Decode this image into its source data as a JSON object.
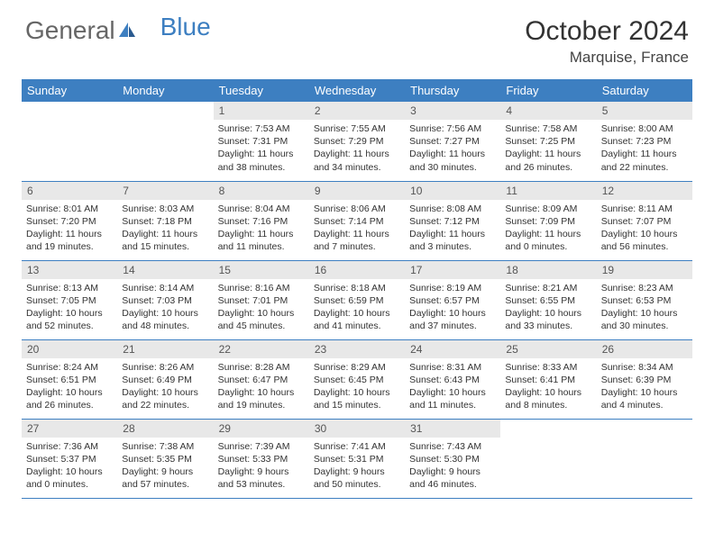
{
  "brand": {
    "part1": "General",
    "part2": "Blue"
  },
  "title": "October 2024",
  "location": "Marquise, France",
  "colors": {
    "accent": "#3d7fc1",
    "header_text": "#ffffff",
    "daynum_bg": "#e8e8e8",
    "text": "#333333",
    "bg": "#ffffff"
  },
  "weekdays": [
    "Sunday",
    "Monday",
    "Tuesday",
    "Wednesday",
    "Thursday",
    "Friday",
    "Saturday"
  ],
  "weeks": [
    [
      null,
      null,
      {
        "n": "1",
        "sr": "7:53 AM",
        "ss": "7:31 PM",
        "dl": "11 hours and 38 minutes."
      },
      {
        "n": "2",
        "sr": "7:55 AM",
        "ss": "7:29 PM",
        "dl": "11 hours and 34 minutes."
      },
      {
        "n": "3",
        "sr": "7:56 AM",
        "ss": "7:27 PM",
        "dl": "11 hours and 30 minutes."
      },
      {
        "n": "4",
        "sr": "7:58 AM",
        "ss": "7:25 PM",
        "dl": "11 hours and 26 minutes."
      },
      {
        "n": "5",
        "sr": "8:00 AM",
        "ss": "7:23 PM",
        "dl": "11 hours and 22 minutes."
      }
    ],
    [
      {
        "n": "6",
        "sr": "8:01 AM",
        "ss": "7:20 PM",
        "dl": "11 hours and 19 minutes."
      },
      {
        "n": "7",
        "sr": "8:03 AM",
        "ss": "7:18 PM",
        "dl": "11 hours and 15 minutes."
      },
      {
        "n": "8",
        "sr": "8:04 AM",
        "ss": "7:16 PM",
        "dl": "11 hours and 11 minutes."
      },
      {
        "n": "9",
        "sr": "8:06 AM",
        "ss": "7:14 PM",
        "dl": "11 hours and 7 minutes."
      },
      {
        "n": "10",
        "sr": "8:08 AM",
        "ss": "7:12 PM",
        "dl": "11 hours and 3 minutes."
      },
      {
        "n": "11",
        "sr": "8:09 AM",
        "ss": "7:09 PM",
        "dl": "11 hours and 0 minutes."
      },
      {
        "n": "12",
        "sr": "8:11 AM",
        "ss": "7:07 PM",
        "dl": "10 hours and 56 minutes."
      }
    ],
    [
      {
        "n": "13",
        "sr": "8:13 AM",
        "ss": "7:05 PM",
        "dl": "10 hours and 52 minutes."
      },
      {
        "n": "14",
        "sr": "8:14 AM",
        "ss": "7:03 PM",
        "dl": "10 hours and 48 minutes."
      },
      {
        "n": "15",
        "sr": "8:16 AM",
        "ss": "7:01 PM",
        "dl": "10 hours and 45 minutes."
      },
      {
        "n": "16",
        "sr": "8:18 AM",
        "ss": "6:59 PM",
        "dl": "10 hours and 41 minutes."
      },
      {
        "n": "17",
        "sr": "8:19 AM",
        "ss": "6:57 PM",
        "dl": "10 hours and 37 minutes."
      },
      {
        "n": "18",
        "sr": "8:21 AM",
        "ss": "6:55 PM",
        "dl": "10 hours and 33 minutes."
      },
      {
        "n": "19",
        "sr": "8:23 AM",
        "ss": "6:53 PM",
        "dl": "10 hours and 30 minutes."
      }
    ],
    [
      {
        "n": "20",
        "sr": "8:24 AM",
        "ss": "6:51 PM",
        "dl": "10 hours and 26 minutes."
      },
      {
        "n": "21",
        "sr": "8:26 AM",
        "ss": "6:49 PM",
        "dl": "10 hours and 22 minutes."
      },
      {
        "n": "22",
        "sr": "8:28 AM",
        "ss": "6:47 PM",
        "dl": "10 hours and 19 minutes."
      },
      {
        "n": "23",
        "sr": "8:29 AM",
        "ss": "6:45 PM",
        "dl": "10 hours and 15 minutes."
      },
      {
        "n": "24",
        "sr": "8:31 AM",
        "ss": "6:43 PM",
        "dl": "10 hours and 11 minutes."
      },
      {
        "n": "25",
        "sr": "8:33 AM",
        "ss": "6:41 PM",
        "dl": "10 hours and 8 minutes."
      },
      {
        "n": "26",
        "sr": "8:34 AM",
        "ss": "6:39 PM",
        "dl": "10 hours and 4 minutes."
      }
    ],
    [
      {
        "n": "27",
        "sr": "7:36 AM",
        "ss": "5:37 PM",
        "dl": "10 hours and 0 minutes."
      },
      {
        "n": "28",
        "sr": "7:38 AM",
        "ss": "5:35 PM",
        "dl": "9 hours and 57 minutes."
      },
      {
        "n": "29",
        "sr": "7:39 AM",
        "ss": "5:33 PM",
        "dl": "9 hours and 53 minutes."
      },
      {
        "n": "30",
        "sr": "7:41 AM",
        "ss": "5:31 PM",
        "dl": "9 hours and 50 minutes."
      },
      {
        "n": "31",
        "sr": "7:43 AM",
        "ss": "5:30 PM",
        "dl": "9 hours and 46 minutes."
      },
      null,
      null
    ]
  ],
  "labels": {
    "sunrise": "Sunrise:",
    "sunset": "Sunset:",
    "daylight": "Daylight:"
  }
}
